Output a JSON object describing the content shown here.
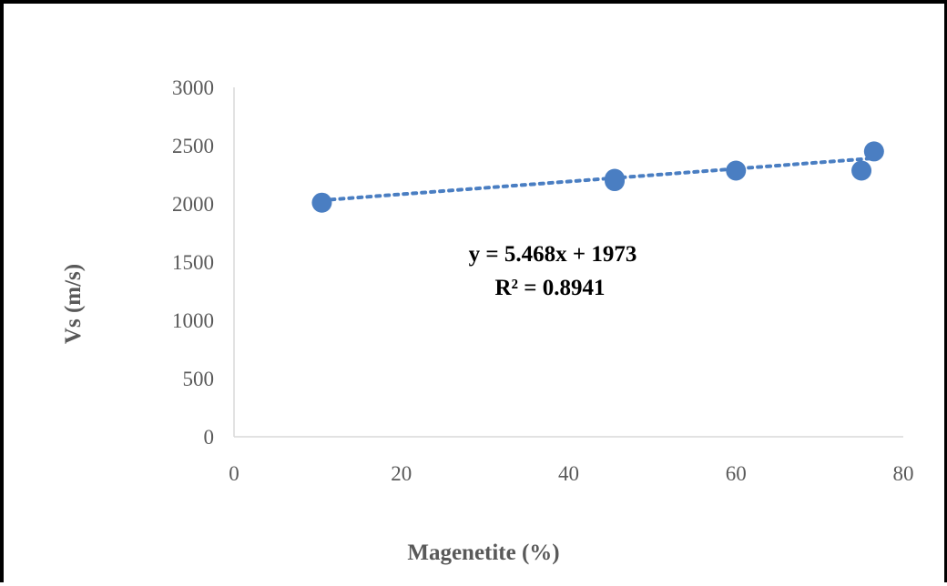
{
  "chart_data": {
    "type": "scatter",
    "xlabel": "Magenetite (%)",
    "ylabel": "Vs (m/s)",
    "xlim": [
      0,
      80
    ],
    "ylim": [
      0,
      3000
    ],
    "xticks": [
      "0",
      "20",
      "40",
      "60",
      "80"
    ],
    "yticks": [
      "0",
      "500",
      "1000",
      "1500",
      "2000",
      "2500",
      "3000"
    ],
    "series": [
      {
        "points": [
          {
            "x": 10.5,
            "y": 2010
          },
          {
            "x": 45.5,
            "y": 2195
          },
          {
            "x": 45.5,
            "y": 2215
          },
          {
            "x": 60,
            "y": 2285
          },
          {
            "x": 75,
            "y": 2285
          },
          {
            "x": 76.5,
            "y": 2450
          }
        ],
        "color": "#4a7ec2"
      }
    ],
    "trendline": {
      "slope": 5.468,
      "intercept": 1973,
      "x_range": [
        10.5,
        76.5
      ],
      "style": "dotted",
      "color": "#4a7ec2"
    },
    "annotations": {
      "equation": "y = 5.468x + 1973",
      "r_squared": "R² = 0.8941"
    },
    "grid": false,
    "legend": "none"
  }
}
